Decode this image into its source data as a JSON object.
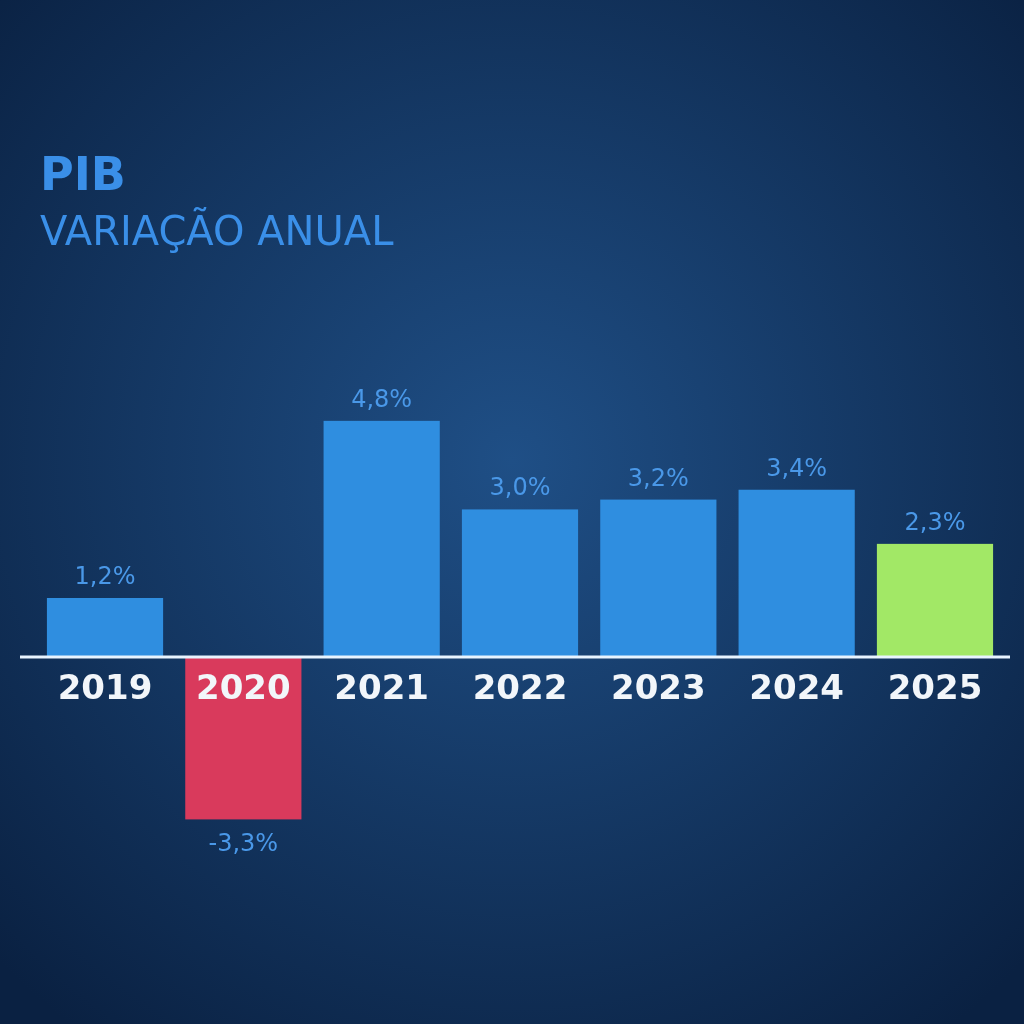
{
  "chart_data": {
    "type": "bar",
    "title": "PIB",
    "subtitle": "VARIAÇÃO ANUAL",
    "categories": [
      "2019",
      "2020",
      "2021",
      "2022",
      "2023",
      "2024",
      "2025"
    ],
    "values": [
      1.2,
      -3.3,
      4.8,
      3.0,
      3.2,
      3.4,
      2.3
    ],
    "colors": [
      "#2f8ee0",
      "#d93a5c",
      "#2f8ee0",
      "#2f8ee0",
      "#2f8ee0",
      "#2f8ee0",
      "#a2e866"
    ],
    "value_labels": [
      "1,2%",
      "-3,3%",
      "4,8%",
      "3,0%",
      "3,2%",
      "3,4%",
      "2,3%"
    ]
  }
}
